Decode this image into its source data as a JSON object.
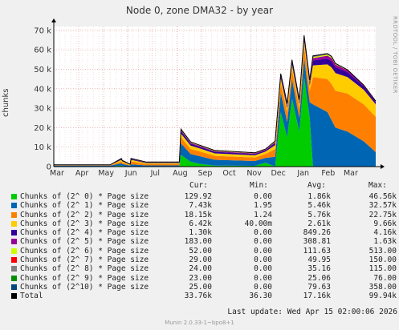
{
  "title": "Node 0, zone DMA32 - by year",
  "watermark": "RRDTOOL / TOBI OETIKER",
  "footer_version": "Munin 2.0.33-1~bpo8+1",
  "last_update": "Last update: Wed Apr 15 02:00:06 2026",
  "legend_headers": {
    "cur": "Cur:",
    "min": "Min:",
    "avg": "Avg:",
    "max": "Max:"
  },
  "legend": [
    {
      "label": "Chunks of (2^ 0) * Page size",
      "color": "#00cc00",
      "cur": "129.92",
      "min": "0.00",
      "avg": "1.86k",
      "max": "46.56k"
    },
    {
      "label": "Chunks of (2^ 1) * Page size",
      "color": "#0066b3",
      "cur": "7.43k",
      "min": "1.95",
      "avg": "5.46k",
      "max": "32.57k"
    },
    {
      "label": "Chunks of (2^ 2) * Page size",
      "color": "#ff8000",
      "cur": "18.15k",
      "min": "1.24",
      "avg": "5.76k",
      "max": "22.75k"
    },
    {
      "label": "Chunks of (2^ 3) * Page size",
      "color": "#ffcc00",
      "cur": "6.42k",
      "min": "40.00m",
      "avg": "2.61k",
      "max": "9.66k"
    },
    {
      "label": "Chunks of (2^ 4) * Page size",
      "color": "#330099",
      "cur": "1.30k",
      "min": "0.00",
      "avg": "849.26",
      "max": "4.16k"
    },
    {
      "label": "Chunks of (2^ 5) * Page size",
      "color": "#990099",
      "cur": "183.00",
      "min": "0.00",
      "avg": "308.81",
      "max": "1.63k"
    },
    {
      "label": "Chunks of (2^ 6) * Page size",
      "color": "#ccff00",
      "cur": "52.00",
      "min": "0.00",
      "avg": "111.63",
      "max": "513.00"
    },
    {
      "label": "Chunks of (2^ 7) * Page size",
      "color": "#ff0000",
      "cur": "29.00",
      "min": "0.00",
      "avg": "49.95",
      "max": "150.00"
    },
    {
      "label": "Chunks of (2^ 8) * Page size",
      "color": "#808080",
      "cur": "24.00",
      "min": "0.00",
      "avg": "35.16",
      "max": "115.00"
    },
    {
      "label": "Chunks of (2^ 9) * Page size",
      "color": "#008f00",
      "cur": "23.00",
      "min": "0.00",
      "avg": "25.06",
      "max": "76.00"
    },
    {
      "label": "Chunks of (2^10) * Page size",
      "color": "#00487d",
      "cur": "25.00",
      "min": "0.00",
      "avg": "79.63",
      "max": "358.00"
    },
    {
      "label": "Total",
      "color": "#000000",
      "cur": "33.76k",
      "min": "36.30",
      "avg": "17.16k",
      "max": "99.94k"
    }
  ],
  "chart_data": {
    "type": "area",
    "title": "Node 0, zone DMA32 - by year",
    "ylabel": "chunks",
    "ylim": [
      0,
      72000
    ],
    "yticks": [
      0,
      10000,
      20000,
      30000,
      40000,
      50000,
      60000,
      70000
    ],
    "ytick_labels": [
      "0",
      "10 k",
      "20 k",
      "30 k",
      "40 k",
      "50 k",
      "60 k",
      "70 k"
    ],
    "months": [
      "Mar",
      "Apr",
      "May",
      "Jun",
      "Jul",
      "Aug",
      "Sep",
      "Oct",
      "Nov",
      "Dec",
      "Jan",
      "Feb",
      "Mar"
    ],
    "grid": true,
    "x_day": [
      0,
      60,
      70,
      84,
      85,
      95,
      96,
      115,
      156,
      158,
      170,
      180,
      200,
      250,
      263,
      275,
      282,
      290,
      296,
      305,
      311,
      318,
      322,
      340,
      345,
      350,
      365,
      385,
      400
    ],
    "series": [
      {
        "name": "Chunks of (2^ 0) * Page size",
        "values": [
          0,
          0,
          0,
          500,
          300,
          0,
          0,
          0,
          0,
          6000,
          2500,
          1500,
          500,
          400,
          2000,
          0,
          28000,
          15000,
          35000,
          18000,
          46000,
          25000,
          0,
          0,
          0,
          0,
          0,
          0,
          0
        ]
      },
      {
        "name": "Chunks of (2^ 1) * Page size",
        "values": [
          500,
          500,
          500,
          1200,
          1000,
          500,
          1200,
          600,
          600,
          6000,
          4000,
          4000,
          3000,
          2500,
          2500,
          5000,
          10000,
          8000,
          10000,
          7000,
          10000,
          8000,
          32000,
          28000,
          24000,
          20000,
          18000,
          13000,
          7430
        ]
      },
      {
        "name": "Chunks of (2^ 2) * Page size",
        "values": [
          200,
          200,
          200,
          1000,
          800,
          300,
          1500,
          700,
          700,
          3000,
          2500,
          2500,
          2000,
          1800,
          2000,
          4000,
          5000,
          5000,
          5000,
          5000,
          6000,
          6000,
          14000,
          17000,
          18500,
          19000,
          19500,
          19000,
          18150
        ]
      },
      {
        "name": "Chunks of (2^ 3) * Page size",
        "values": [
          100,
          100,
          100,
          800,
          600,
          200,
          800,
          500,
          500,
          2000,
          1800,
          1500,
          1300,
          1100,
          1200,
          2000,
          2200,
          2000,
          2300,
          2000,
          2500,
          2500,
          6000,
          7500,
          8500,
          9000,
          8500,
          7500,
          6420
        ]
      },
      {
        "name": "Chunks of (2^ 4) * Page size",
        "values": [
          50,
          50,
          50,
          400,
          300,
          100,
          400,
          300,
          300,
          1200,
          1000,
          900,
          800,
          700,
          700,
          1100,
          1300,
          1200,
          1300,
          1200,
          1400,
          1400,
          2500,
          3000,
          3200,
          3000,
          2500,
          1800,
          1300
        ]
      },
      {
        "name": "Chunks of (2^ 5) * Page size",
        "values": [
          20,
          20,
          20,
          150,
          100,
          50,
          150,
          100,
          100,
          500,
          450,
          400,
          350,
          300,
          300,
          500,
          600,
          550,
          600,
          550,
          700,
          700,
          1200,
          1500,
          1600,
          1400,
          900,
          400,
          183
        ]
      },
      {
        "name": "Chunks of (2^ 6) * Page size",
        "values": [
          10,
          10,
          10,
          60,
          50,
          20,
          60,
          50,
          50,
          200,
          180,
          160,
          150,
          120,
          120,
          200,
          250,
          220,
          250,
          220,
          300,
          300,
          500,
          480,
          450,
          300,
          150,
          70,
          52
        ]
      },
      {
        "name": "Chunks of (2^ 7) * Page size",
        "values": [
          5,
          5,
          5,
          30,
          25,
          10,
          30,
          25,
          25,
          90,
          80,
          70,
          65,
          55,
          55,
          90,
          110,
          100,
          110,
          100,
          130,
          130,
          150,
          130,
          110,
          80,
          50,
          35,
          29
        ]
      },
      {
        "name": "Chunks of (2^ 8) * Page size",
        "values": [
          5,
          5,
          5,
          20,
          18,
          8,
          20,
          18,
          18,
          60,
          55,
          50,
          45,
          40,
          40,
          60,
          80,
          70,
          80,
          70,
          100,
          100,
          115,
          100,
          80,
          60,
          40,
          30,
          24
        ]
      },
      {
        "name": "Chunks of (2^ 9) * Page size",
        "values": [
          3,
          3,
          3,
          12,
          10,
          5,
          12,
          10,
          10,
          35,
          30,
          28,
          26,
          24,
          24,
          35,
          45,
          40,
          45,
          40,
          60,
          60,
          76,
          60,
          45,
          35,
          30,
          25,
          23
        ]
      },
      {
        "name": "Chunks of (2^10) * Page size",
        "values": [
          5,
          5,
          5,
          30,
          25,
          10,
          30,
          25,
          25,
          150,
          120,
          100,
          90,
          80,
          80,
          150,
          200,
          180,
          200,
          180,
          300,
          300,
          358,
          300,
          200,
          100,
          50,
          30,
          25
        ]
      }
    ]
  }
}
